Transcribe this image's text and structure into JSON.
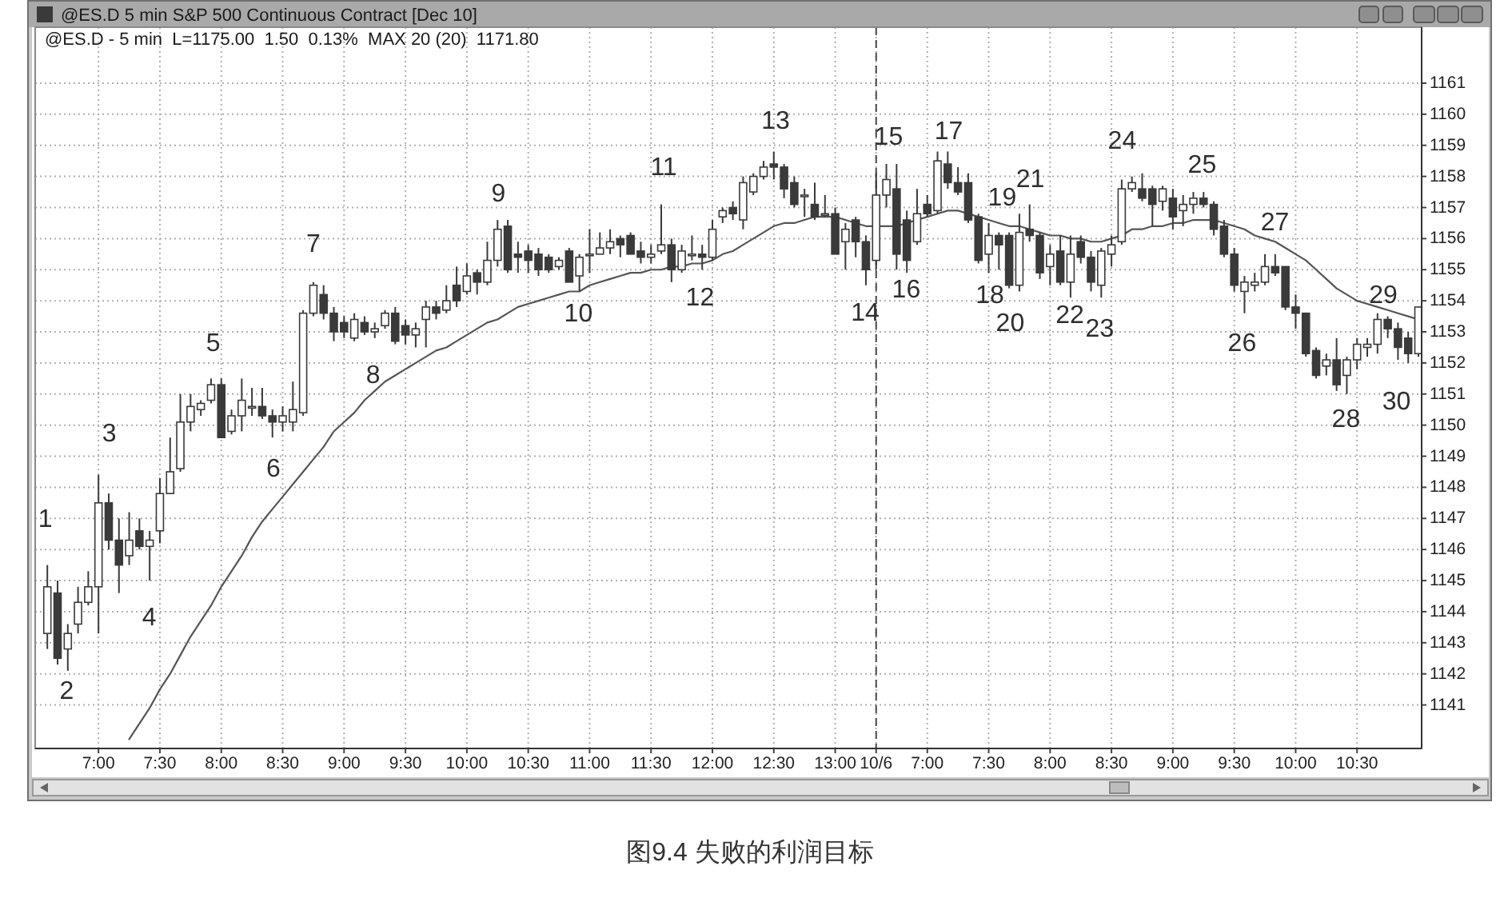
{
  "chart_data": {
    "type": "candlestick",
    "title": "@ES.D 5 min S&P 500 Continuous Contract [Dec 10]",
    "categories": [
      null,
      null,
      null,
      null,
      null,
      "7:00",
      null,
      null,
      null,
      null,
      null,
      "7:30",
      null,
      null,
      null,
      null,
      null,
      "8:00",
      null,
      null,
      null,
      null,
      null,
      "8:30",
      null,
      null,
      null,
      null,
      null,
      "9:00",
      null,
      null,
      null,
      null,
      null,
      "9:30",
      null,
      null,
      null,
      null,
      null,
      "10:00",
      null,
      null,
      null,
      null,
      null,
      "10:30",
      null,
      null,
      null,
      null,
      null,
      "11:00",
      null,
      null,
      null,
      null,
      null,
      "11:30",
      null,
      null,
      null,
      null,
      null,
      "12:00",
      null,
      null,
      null,
      null,
      null,
      "12:30",
      null,
      null,
      null,
      null,
      null,
      "13:00",
      null,
      null,
      null,
      "10/6",
      null,
      null,
      null,
      null,
      "7:00",
      null,
      null,
      null,
      null,
      null,
      "7:30",
      null,
      null,
      null,
      null,
      null,
      "8:00",
      null,
      null,
      null,
      null,
      null,
      "8:30",
      null,
      null,
      null,
      null,
      null,
      "9:00",
      null,
      null,
      null,
      null,
      null,
      "9:30",
      null,
      null,
      null,
      null,
      null,
      "10:00",
      null,
      null,
      null,
      null,
      null,
      "10:30",
      null,
      null,
      null,
      null,
      null,
      null
    ],
    "ylim": [
      1139.6,
      1162.8
    ],
    "yticks": [
      1141,
      1142,
      1143,
      1144,
      1145,
      1146,
      1147,
      1148,
      1149,
      1150,
      1151,
      1152,
      1153,
      1154,
      1155,
      1156,
      1157,
      1158,
      1159,
      1160,
      1161
    ],
    "grid": true,
    "ref_lines": [
      {
        "axis": "x",
        "value": "10/6",
        "line_style": "dashed",
        "color": "#4a4a4a"
      }
    ],
    "series": [
      {
        "type": "line",
        "color": "#555555",
        "values": [
          null,
          null,
          null,
          null,
          null,
          null,
          null,
          null,
          1139.9,
          1140.4,
          1140.9,
          1141.5,
          1142.0,
          1142.6,
          1143.2,
          1143.7,
          1144.2,
          1144.8,
          1145.3,
          1145.8,
          1146.4,
          1146.9,
          1147.3,
          1147.7,
          1148.1,
          1148.5,
          1148.9,
          1149.3,
          1149.8,
          1150.1,
          1150.4,
          1150.8,
          1151.1,
          1151.4,
          1151.6,
          1151.8,
          1152.0,
          1152.2,
          1152.4,
          1152.5,
          1152.7,
          1152.9,
          1153.1,
          1153.3,
          1153.4,
          1153.6,
          1153.8,
          1153.9,
          1154.0,
          1154.1,
          1154.2,
          1154.3,
          1154.3,
          1154.5,
          1154.6,
          1154.7,
          1154.8,
          1154.9,
          1154.9,
          1155.0,
          1155.0,
          1155.1,
          1155.1,
          1155.2,
          1155.2,
          1155.3,
          1155.5,
          1155.6,
          1155.8,
          1156.0,
          1156.2,
          1156.4,
          1156.5,
          1156.5,
          1156.6,
          1156.7,
          1156.7,
          1156.7,
          1156.6,
          1156.5,
          1156.4,
          1156.4,
          1156.4,
          1156.4,
          1156.5,
          1156.6,
          1156.7,
          1156.8,
          1156.9,
          1156.9,
          1156.8,
          1156.7,
          1156.6,
          1156.5,
          1156.4,
          1156.4,
          1156.3,
          1156.2,
          1156.1,
          1156.1,
          1156.0,
          1156.0,
          1155.9,
          1155.9,
          1156.0,
          1156.1,
          1156.3,
          1156.3,
          1156.4,
          1156.4,
          1156.5,
          1156.5,
          1156.6,
          1156.6,
          1156.6,
          1156.5,
          1156.4,
          1156.3,
          1156.1,
          1156.0,
          1155.9,
          1155.7,
          1155.5,
          1155.3,
          1155.0,
          1154.7,
          1154.4,
          1154.2,
          1154.0,
          1153.9,
          1153.8,
          1153.7,
          1153.6,
          1153.5,
          1153.4
        ]
      },
      {
        "color": "#3a3a3a",
        "ohlc": [
          [
            1143.3,
            1145.5,
            1142.8,
            1144.8
          ],
          [
            1144.6,
            1145.0,
            1142.3,
            1142.5
          ],
          [
            1142.8,
            1143.6,
            1142.1,
            1143.3
          ],
          [
            1143.6,
            1144.8,
            1143.3,
            1144.3
          ],
          [
            1144.3,
            1145.3,
            1144.2,
            1144.8
          ],
          [
            1144.8,
            1148.4,
            1143.3,
            1147.5
          ],
          [
            1147.5,
            1147.8,
            1146.0,
            1146.3
          ],
          [
            1146.3,
            1147.0,
            1144.6,
            1145.5
          ],
          [
            1145.8,
            1147.2,
            1145.5,
            1146.3
          ],
          [
            1146.6,
            1147.0,
            1146.0,
            1146.1
          ],
          [
            1146.1,
            1146.6,
            1145.0,
            1146.3
          ],
          [
            1146.6,
            1148.3,
            1146.2,
            1147.8
          ],
          [
            1147.8,
            1149.6,
            1147.8,
            1148.5
          ],
          [
            1148.6,
            1151.0,
            1148.5,
            1150.1
          ],
          [
            1150.1,
            1151.0,
            1149.8,
            1150.6
          ],
          [
            1150.5,
            1150.8,
            1150.3,
            1150.7
          ],
          [
            1150.8,
            1151.5,
            1150.7,
            1151.3
          ],
          [
            1151.3,
            1151.5,
            1149.6,
            1149.6
          ],
          [
            1149.8,
            1150.5,
            1149.7,
            1150.3
          ],
          [
            1150.3,
            1151.5,
            1149.8,
            1150.8
          ],
          [
            1150.6,
            1151.2,
            1150.3,
            1150.6
          ],
          [
            1150.6,
            1151.2,
            1150.2,
            1150.3
          ],
          [
            1150.3,
            1150.5,
            1149.6,
            1150.1
          ],
          [
            1150.1,
            1150.6,
            1149.8,
            1150.3
          ],
          [
            1150.1,
            1151.4,
            1149.8,
            1150.5
          ],
          [
            1150.4,
            1153.7,
            1150.3,
            1153.6
          ],
          [
            1153.6,
            1154.6,
            1153.5,
            1154.5
          ],
          [
            1154.2,
            1154.5,
            1153.4,
            1153.6
          ],
          [
            1153.6,
            1153.8,
            1152.7,
            1153.0
          ],
          [
            1153.3,
            1153.5,
            1152.8,
            1153.0
          ],
          [
            1152.8,
            1153.6,
            1152.7,
            1153.4
          ],
          [
            1153.3,
            1153.5,
            1152.9,
            1153.0
          ],
          [
            1153.0,
            1153.3,
            1152.8,
            1153.1
          ],
          [
            1153.2,
            1153.7,
            1153.1,
            1153.6
          ],
          [
            1153.6,
            1153.8,
            1152.6,
            1152.7
          ],
          [
            1153.2,
            1153.4,
            1152.6,
            1152.9
          ],
          [
            1152.9,
            1153.3,
            1152.5,
            1153.1
          ],
          [
            1153.4,
            1154.0,
            1152.5,
            1153.8
          ],
          [
            1153.8,
            1154.0,
            1153.4,
            1153.6
          ],
          [
            1153.7,
            1154.5,
            1153.6,
            1154.0
          ],
          [
            1154.5,
            1155.1,
            1153.8,
            1154.0
          ],
          [
            1154.3,
            1155.2,
            1154.2,
            1154.8
          ],
          [
            1154.9,
            1155.0,
            1154.2,
            1154.6
          ],
          [
            1154.6,
            1155.9,
            1154.5,
            1155.3
          ],
          [
            1155.3,
            1156.6,
            1155.1,
            1156.3
          ],
          [
            1156.4,
            1156.6,
            1154.9,
            1155.0
          ],
          [
            1155.5,
            1155.9,
            1154.9,
            1155.4
          ],
          [
            1155.6,
            1155.8,
            1154.9,
            1155.3
          ],
          [
            1155.5,
            1155.7,
            1154.8,
            1155.0
          ],
          [
            1155.4,
            1155.5,
            1154.9,
            1155.0
          ],
          [
            1155.1,
            1155.4,
            1155.0,
            1155.3
          ],
          [
            1155.6,
            1155.7,
            1154.6,
            1154.6
          ],
          [
            1154.8,
            1155.5,
            1154.3,
            1155.4
          ],
          [
            1155.5,
            1156.3,
            1154.9,
            1155.5
          ],
          [
            1155.5,
            1156.2,
            1155.5,
            1155.7
          ],
          [
            1155.7,
            1156.3,
            1155.5,
            1155.9
          ],
          [
            1156.0,
            1156.1,
            1155.4,
            1155.8
          ],
          [
            1156.1,
            1156.2,
            1155.5,
            1155.5
          ],
          [
            1155.6,
            1155.9,
            1155.2,
            1155.4
          ],
          [
            1155.4,
            1155.8,
            1155.2,
            1155.5
          ],
          [
            1155.6,
            1157.1,
            1155.5,
            1155.8
          ],
          [
            1155.8,
            1156.0,
            1154.6,
            1155.0
          ],
          [
            1155.0,
            1155.8,
            1154.9,
            1155.6
          ],
          [
            1155.5,
            1156.1,
            1155.3,
            1155.5
          ],
          [
            1155.5,
            1155.8,
            1155.0,
            1155.4
          ],
          [
            1155.4,
            1156.6,
            1155.3,
            1156.3
          ],
          [
            1156.7,
            1157.0,
            1156.5,
            1156.9
          ],
          [
            1157.0,
            1157.2,
            1156.6,
            1156.8
          ],
          [
            1156.6,
            1158.0,
            1156.3,
            1157.8
          ],
          [
            1157.5,
            1158.1,
            1157.4,
            1158.0
          ],
          [
            1158.0,
            1158.5,
            1157.9,
            1158.3
          ],
          [
            1158.4,
            1158.8,
            1157.9,
            1158.3
          ],
          [
            1158.3,
            1158.4,
            1157.3,
            1157.6
          ],
          [
            1157.8,
            1158.0,
            1157.0,
            1157.1
          ],
          [
            1157.4,
            1157.6,
            1156.7,
            1157.4
          ],
          [
            1157.1,
            1157.8,
            1156.6,
            1156.7
          ],
          [
            1156.8,
            1157.4,
            1156.7,
            1156.8
          ],
          [
            1156.8,
            1157.0,
            1155.5,
            1155.5
          ],
          [
            1155.9,
            1156.5,
            1155.0,
            1156.3
          ],
          [
            1156.6,
            1156.7,
            1155.4,
            1155.9
          ],
          [
            1155.9,
            1156.1,
            1154.5,
            1155.0
          ],
          [
            1155.3,
            1158.1,
            1155.0,
            1157.4
          ],
          [
            1157.4,
            1158.4,
            1157.0,
            1157.9
          ],
          [
            1157.6,
            1158.4,
            1155.0,
            1155.5
          ],
          [
            1156.6,
            1156.9,
            1154.9,
            1155.3
          ],
          [
            1155.9,
            1157.6,
            1155.8,
            1156.8
          ],
          [
            1157.1,
            1157.4,
            1156.7,
            1156.8
          ],
          [
            1156.9,
            1158.8,
            1156.8,
            1158.5
          ],
          [
            1158.4,
            1158.8,
            1157.6,
            1157.8
          ],
          [
            1157.8,
            1158.3,
            1157.4,
            1157.5
          ],
          [
            1157.8,
            1158.1,
            1156.5,
            1156.6
          ],
          [
            1156.7,
            1156.8,
            1155.2,
            1155.3
          ],
          [
            1155.5,
            1156.5,
            1154.9,
            1156.1
          ],
          [
            1156.1,
            1156.2,
            1155.0,
            1155.8
          ],
          [
            1156.1,
            1156.2,
            1154.4,
            1154.5
          ],
          [
            1154.5,
            1156.8,
            1154.3,
            1156.2
          ],
          [
            1156.3,
            1157.1,
            1155.9,
            1156.1
          ],
          [
            1156.1,
            1156.2,
            1154.7,
            1154.9
          ],
          [
            1155.1,
            1155.8,
            1154.5,
            1155.5
          ],
          [
            1155.6,
            1156.1,
            1154.5,
            1154.6
          ],
          [
            1154.6,
            1156.1,
            1154.1,
            1155.5
          ],
          [
            1155.9,
            1156.1,
            1155.2,
            1155.4
          ],
          [
            1155.4,
            1155.6,
            1154.3,
            1154.6
          ],
          [
            1154.5,
            1155.7,
            1154.1,
            1155.6
          ],
          [
            1155.5,
            1156.1,
            1155.1,
            1155.8
          ],
          [
            1155.9,
            1157.9,
            1155.8,
            1157.6
          ],
          [
            1157.6,
            1158.0,
            1157.5,
            1157.8
          ],
          [
            1157.6,
            1158.1,
            1157.2,
            1157.3
          ],
          [
            1157.6,
            1157.7,
            1156.4,
            1157.1
          ],
          [
            1157.2,
            1157.7,
            1156.9,
            1157.6
          ],
          [
            1157.3,
            1157.6,
            1156.3,
            1156.7
          ],
          [
            1156.9,
            1157.4,
            1156.4,
            1157.1
          ],
          [
            1157.1,
            1157.5,
            1156.8,
            1157.3
          ],
          [
            1157.3,
            1157.5,
            1157.0,
            1157.1
          ],
          [
            1157.1,
            1157.2,
            1156.1,
            1156.3
          ],
          [
            1156.4,
            1156.6,
            1155.4,
            1155.5
          ],
          [
            1155.5,
            1155.7,
            1154.3,
            1154.5
          ],
          [
            1154.3,
            1154.8,
            1153.6,
            1154.6
          ],
          [
            1154.5,
            1154.9,
            1154.3,
            1154.6
          ],
          [
            1154.6,
            1155.5,
            1154.5,
            1155.1
          ],
          [
            1155.1,
            1155.5,
            1154.8,
            1154.9
          ],
          [
            1155.1,
            1155.1,
            1153.7,
            1153.8
          ],
          [
            1153.8,
            1154.2,
            1153.1,
            1153.6
          ],
          [
            1153.6,
            1153.6,
            1152.2,
            1152.3
          ],
          [
            1152.4,
            1152.5,
            1151.5,
            1151.6
          ],
          [
            1151.9,
            1152.3,
            1151.6,
            1152.1
          ],
          [
            1152.1,
            1152.8,
            1151.1,
            1151.3
          ],
          [
            1151.6,
            1152.2,
            1151.0,
            1152.1
          ],
          [
            1152.1,
            1152.8,
            1151.8,
            1152.6
          ],
          [
            1152.5,
            1152.8,
            1152.2,
            1152.6
          ],
          [
            1152.6,
            1153.6,
            1152.3,
            1153.4
          ],
          [
            1153.4,
            1153.5,
            1152.8,
            1153.1
          ],
          [
            1153.1,
            1153.3,
            1152.1,
            1152.5
          ],
          [
            1152.8,
            1153.0,
            1152.0,
            1152.3
          ],
          [
            1152.3,
            1153.8,
            1152.2,
            1153.8
          ]
        ]
      }
    ],
    "annotations": [
      "@ES.D - 5 min  L=1175.00  1.50  0.13%  MAX 20 (20)  1171.80",
      "1",
      "2",
      "3",
      "4",
      "5",
      "6",
      "7",
      "8",
      "9",
      "10",
      "11",
      "12",
      "13",
      "14",
      "15",
      "16",
      "17",
      "18",
      "19",
      "20",
      "21",
      "22",
      "23",
      "24",
      "25",
      "26",
      "27",
      "28",
      "29",
      "30",
      "图9.4 失败的利润目标"
    ]
  }
}
